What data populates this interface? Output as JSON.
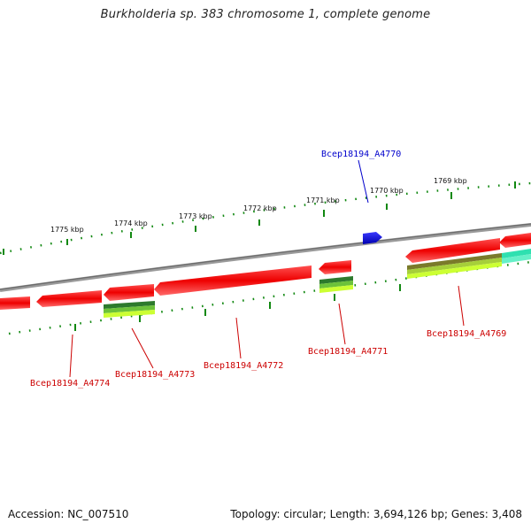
{
  "title": "Burkholderia sp. 383 chromosome 1, complete genome",
  "footer": {
    "accession": "Accession: NC_007510",
    "summary": "Topology: circular; Length: 3,694,126 bp; Genes: 3,408"
  },
  "scale_labels": [
    "1775 kbp",
    "1774 kbp",
    "1773 kbp",
    "1772 kbp",
    "1771 kbp",
    "1770 kbp",
    "1769 kbp"
  ],
  "gene_labels": {
    "top": "Bcep18194_A4770",
    "a4774": "Bcep18194_A4774",
    "a4773": "Bcep18194_A4773",
    "a4772": "Bcep18194_A4772",
    "a4771": "Bcep18194_A4771",
    "a4769": "Bcep18194_A4769"
  },
  "colors": {
    "forward_gene": "#ff0000",
    "highlight_gene": "#1010e0",
    "green_feature": "#2a8a2a",
    "olive_feature": "#7a8a2a",
    "teal_feature": "#30e0b0",
    "backbone": "#888888",
    "tick": "#118811",
    "label_red": "#cc0000",
    "label_blue": "#0000cc"
  }
}
